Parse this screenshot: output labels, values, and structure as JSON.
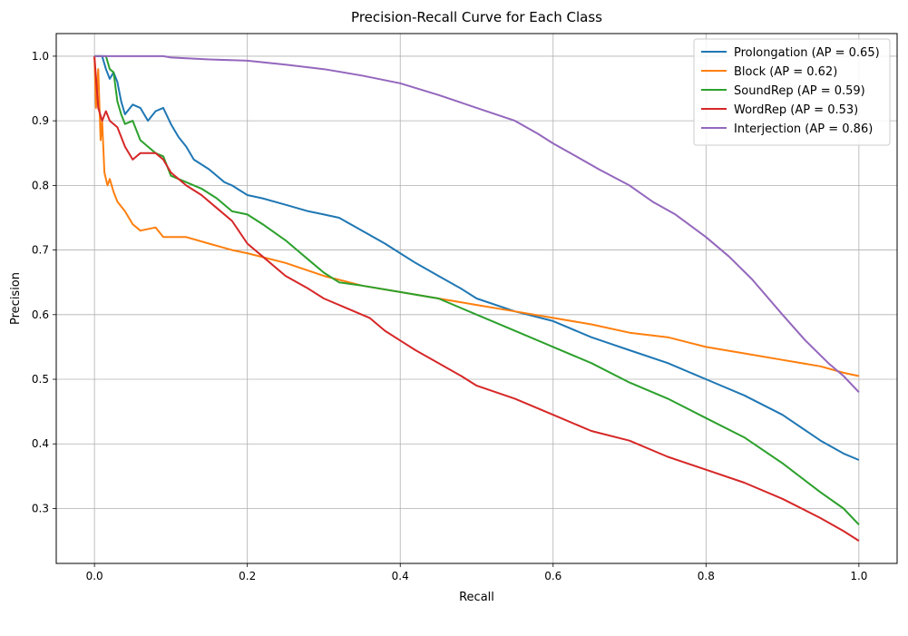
{
  "chart_data": {
    "type": "line",
    "title": "Precision-Recall Curve for Each Class",
    "xlabel": "Recall",
    "ylabel": "Precision",
    "xlim": [
      -0.05,
      1.05
    ],
    "ylim": [
      0.215,
      1.035
    ],
    "xticks": [
      "0.0",
      "0.2",
      "0.4",
      "0.6",
      "0.8",
      "1.0"
    ],
    "yticks": [
      "0.3",
      "0.4",
      "0.5",
      "0.6",
      "0.7",
      "0.8",
      "0.9",
      "1.0"
    ],
    "grid": true,
    "legend_position": "top-right",
    "series": [
      {
        "name": "Prolongation (AP = 0.65)",
        "color": "#1f77b4",
        "points": [
          [
            0.0,
            1.0
          ],
          [
            0.01,
            1.0
          ],
          [
            0.015,
            0.98
          ],
          [
            0.02,
            0.965
          ],
          [
            0.025,
            0.975
          ],
          [
            0.03,
            0.96
          ],
          [
            0.035,
            0.93
          ],
          [
            0.04,
            0.91
          ],
          [
            0.05,
            0.925
          ],
          [
            0.06,
            0.92
          ],
          [
            0.07,
            0.9
          ],
          [
            0.08,
            0.915
          ],
          [
            0.09,
            0.92
          ],
          [
            0.1,
            0.895
          ],
          [
            0.11,
            0.875
          ],
          [
            0.12,
            0.86
          ],
          [
            0.13,
            0.84
          ],
          [
            0.15,
            0.825
          ],
          [
            0.17,
            0.805
          ],
          [
            0.18,
            0.8
          ],
          [
            0.2,
            0.785
          ],
          [
            0.22,
            0.78
          ],
          [
            0.25,
            0.77
          ],
          [
            0.28,
            0.76
          ],
          [
            0.3,
            0.755
          ],
          [
            0.32,
            0.75
          ],
          [
            0.35,
            0.73
          ],
          [
            0.38,
            0.71
          ],
          [
            0.4,
            0.695
          ],
          [
            0.42,
            0.68
          ],
          [
            0.45,
            0.66
          ],
          [
            0.48,
            0.64
          ],
          [
            0.5,
            0.625
          ],
          [
            0.55,
            0.605
          ],
          [
            0.6,
            0.59
          ],
          [
            0.65,
            0.565
          ],
          [
            0.7,
            0.545
          ],
          [
            0.75,
            0.525
          ],
          [
            0.8,
            0.5
          ],
          [
            0.85,
            0.475
          ],
          [
            0.9,
            0.445
          ],
          [
            0.95,
            0.405
          ],
          [
            0.98,
            0.385
          ],
          [
            1.0,
            0.375
          ]
        ]
      },
      {
        "name": "Block (AP = 0.62)",
        "color": "#ff7f0e",
        "points": [
          [
            0.0,
            1.0
          ],
          [
            0.002,
            0.92
          ],
          [
            0.005,
            0.98
          ],
          [
            0.008,
            0.87
          ],
          [
            0.01,
            0.9
          ],
          [
            0.013,
            0.82
          ],
          [
            0.017,
            0.8
          ],
          [
            0.02,
            0.81
          ],
          [
            0.025,
            0.79
          ],
          [
            0.03,
            0.775
          ],
          [
            0.04,
            0.76
          ],
          [
            0.05,
            0.74
          ],
          [
            0.06,
            0.73
          ],
          [
            0.08,
            0.735
          ],
          [
            0.09,
            0.72
          ],
          [
            0.12,
            0.72
          ],
          [
            0.15,
            0.71
          ],
          [
            0.18,
            0.7
          ],
          [
            0.2,
            0.695
          ],
          [
            0.25,
            0.68
          ],
          [
            0.3,
            0.66
          ],
          [
            0.35,
            0.645
          ],
          [
            0.4,
            0.635
          ],
          [
            0.45,
            0.625
          ],
          [
            0.5,
            0.615
          ],
          [
            0.55,
            0.605
          ],
          [
            0.6,
            0.595
          ],
          [
            0.65,
            0.585
          ],
          [
            0.7,
            0.572
          ],
          [
            0.75,
            0.565
          ],
          [
            0.8,
            0.55
          ],
          [
            0.85,
            0.54
          ],
          [
            0.9,
            0.53
          ],
          [
            0.95,
            0.52
          ],
          [
            0.98,
            0.51
          ],
          [
            1.0,
            0.505
          ]
        ]
      },
      {
        "name": "SoundRep (AP = 0.59)",
        "color": "#2ca02c",
        "points": [
          [
            0.0,
            1.0
          ],
          [
            0.015,
            1.0
          ],
          [
            0.02,
            0.98
          ],
          [
            0.025,
            0.975
          ],
          [
            0.03,
            0.93
          ],
          [
            0.035,
            0.91
          ],
          [
            0.04,
            0.895
          ],
          [
            0.05,
            0.9
          ],
          [
            0.06,
            0.87
          ],
          [
            0.07,
            0.86
          ],
          [
            0.08,
            0.85
          ],
          [
            0.09,
            0.845
          ],
          [
            0.1,
            0.815
          ],
          [
            0.12,
            0.805
          ],
          [
            0.14,
            0.795
          ],
          [
            0.16,
            0.78
          ],
          [
            0.18,
            0.76
          ],
          [
            0.2,
            0.755
          ],
          [
            0.22,
            0.74
          ],
          [
            0.25,
            0.715
          ],
          [
            0.28,
            0.685
          ],
          [
            0.3,
            0.665
          ],
          [
            0.32,
            0.65
          ],
          [
            0.35,
            0.645
          ],
          [
            0.4,
            0.635
          ],
          [
            0.45,
            0.625
          ],
          [
            0.5,
            0.6
          ],
          [
            0.55,
            0.575
          ],
          [
            0.6,
            0.55
          ],
          [
            0.65,
            0.525
          ],
          [
            0.7,
            0.495
          ],
          [
            0.75,
            0.47
          ],
          [
            0.8,
            0.44
          ],
          [
            0.85,
            0.41
          ],
          [
            0.9,
            0.37
          ],
          [
            0.95,
            0.325
          ],
          [
            0.98,
            0.3
          ],
          [
            1.0,
            0.275
          ]
        ]
      },
      {
        "name": "WordRep (AP = 0.53)",
        "color": "#d62728",
        "points": [
          [
            0.0,
            1.0
          ],
          [
            0.005,
            0.92
          ],
          [
            0.01,
            0.9
          ],
          [
            0.015,
            0.915
          ],
          [
            0.02,
            0.9
          ],
          [
            0.03,
            0.89
          ],
          [
            0.04,
            0.86
          ],
          [
            0.05,
            0.84
          ],
          [
            0.06,
            0.85
          ],
          [
            0.08,
            0.85
          ],
          [
            0.09,
            0.84
          ],
          [
            0.1,
            0.82
          ],
          [
            0.12,
            0.8
          ],
          [
            0.14,
            0.785
          ],
          [
            0.16,
            0.765
          ],
          [
            0.18,
            0.745
          ],
          [
            0.2,
            0.71
          ],
          [
            0.22,
            0.69
          ],
          [
            0.25,
            0.66
          ],
          [
            0.28,
            0.64
          ],
          [
            0.3,
            0.625
          ],
          [
            0.33,
            0.61
          ],
          [
            0.36,
            0.595
          ],
          [
            0.38,
            0.575
          ],
          [
            0.4,
            0.56
          ],
          [
            0.42,
            0.545
          ],
          [
            0.45,
            0.525
          ],
          [
            0.48,
            0.505
          ],
          [
            0.5,
            0.49
          ],
          [
            0.55,
            0.47
          ],
          [
            0.6,
            0.445
          ],
          [
            0.65,
            0.42
          ],
          [
            0.7,
            0.405
          ],
          [
            0.75,
            0.38
          ],
          [
            0.8,
            0.36
          ],
          [
            0.85,
            0.34
          ],
          [
            0.9,
            0.315
          ],
          [
            0.95,
            0.285
          ],
          [
            0.98,
            0.265
          ],
          [
            1.0,
            0.25
          ]
        ]
      },
      {
        "name": "Interjection (AP = 0.86)",
        "color": "#9467bd",
        "points": [
          [
            0.0,
            1.0
          ],
          [
            0.09,
            1.0
          ],
          [
            0.1,
            0.998
          ],
          [
            0.15,
            0.995
          ],
          [
            0.2,
            0.993
          ],
          [
            0.25,
            0.987
          ],
          [
            0.3,
            0.98
          ],
          [
            0.35,
            0.97
          ],
          [
            0.4,
            0.958
          ],
          [
            0.45,
            0.94
          ],
          [
            0.5,
            0.92
          ],
          [
            0.55,
            0.9
          ],
          [
            0.58,
            0.88
          ],
          [
            0.6,
            0.865
          ],
          [
            0.63,
            0.845
          ],
          [
            0.66,
            0.825
          ],
          [
            0.7,
            0.8
          ],
          [
            0.73,
            0.775
          ],
          [
            0.76,
            0.755
          ],
          [
            0.8,
            0.72
          ],
          [
            0.83,
            0.69
          ],
          [
            0.86,
            0.655
          ],
          [
            0.9,
            0.6
          ],
          [
            0.93,
            0.56
          ],
          [
            0.96,
            0.525
          ],
          [
            0.98,
            0.505
          ],
          [
            1.0,
            0.48
          ]
        ]
      }
    ]
  }
}
